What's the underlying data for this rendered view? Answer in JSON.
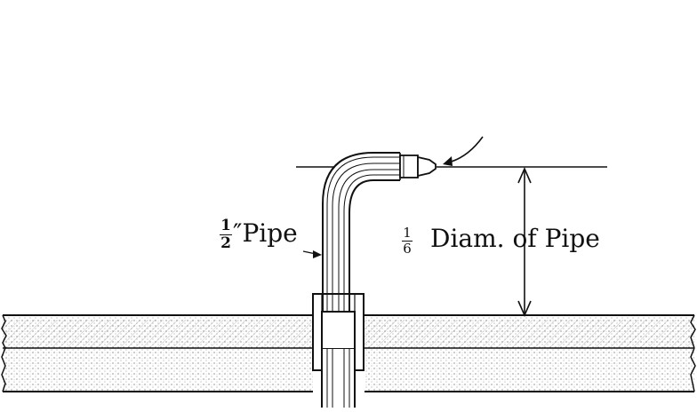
{
  "labels": {
    "pipe_fraction_numerator": "1",
    "pipe_fraction_denominator": "2",
    "pipe_text": "″Pipe",
    "diam_fraction_numerator": "1",
    "diam_fraction_denominator": "6",
    "diam_text": "Diam. of Pipe"
  },
  "colors": {
    "ink": "#111111",
    "background": "#ffffff"
  }
}
